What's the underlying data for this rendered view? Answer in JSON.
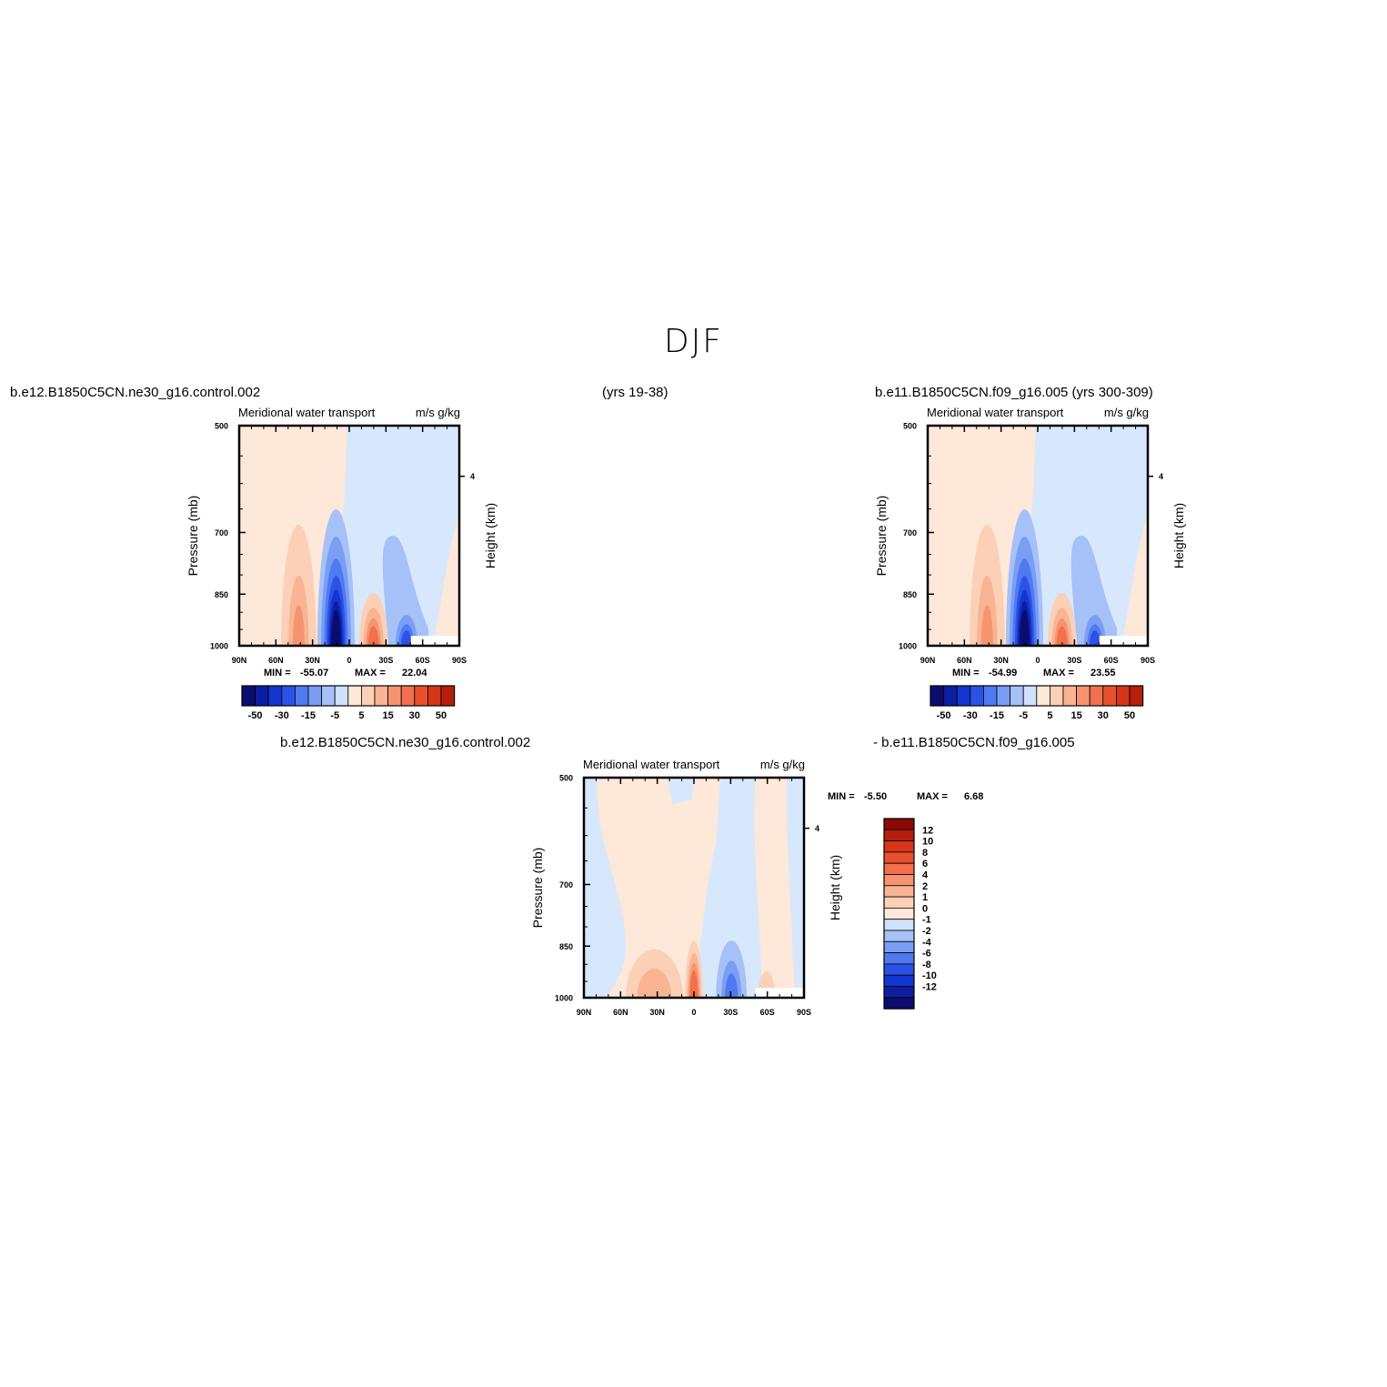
{
  "figure": {
    "title": "DJF",
    "panel_captions": {
      "p1_left": "b.e12.B1850C5CN.ne30_g16.control.002",
      "p1_right": "(yrs 19-38)",
      "p2_left": "b.e11.B1850C5CN.f09_g16.005 (yrs 300-309)",
      "p3_left": "b.e12.B1850C5CN.ne30_g16.control.002",
      "p3_right": "- b.e11.B1850C5CN.f09_g16.005"
    }
  },
  "colors": {
    "blues": [
      "#0b0d6e",
      "#0d1ea3",
      "#1436d0",
      "#2b52e6",
      "#4f7af0",
      "#7a9ef4",
      "#a6c0f8",
      "#cfe1fc"
    ],
    "reds": [
      "#fde8d9",
      "#fbd0b6",
      "#f9b493",
      "#f69470",
      "#f2704d",
      "#e8502d",
      "#d63518",
      "#b51f0c",
      "#8a0a05"
    ],
    "background_pos": "#fde8d9",
    "background_neg": "#d7e8fd"
  },
  "chart_data": [
    {
      "type": "contour",
      "panel": "top-left",
      "title_left": "Meridional water transport",
      "title_right": "m/s g/kg",
      "ylabel": "Pressure (mb)",
      "ylabel_right": "Height (km)",
      "yticks": [
        500,
        700,
        850,
        1000
      ],
      "ylim": [
        500,
        1000
      ],
      "right_ticks": [
        "4"
      ],
      "xticks": [
        "90N",
        "60N",
        "30N",
        "0",
        "30S",
        "60S",
        "90S"
      ],
      "min_label": "MIN =",
      "min_value": "-55.07",
      "max_label": "MAX =",
      "max_value": "22.04",
      "colorbar_labels": [
        "-50",
        "-30",
        "-15",
        "-5",
        "5",
        "15",
        "30",
        "50"
      ]
    },
    {
      "type": "contour",
      "panel": "top-right",
      "title_left": "Meridional water transport",
      "title_right": "m/s g/kg",
      "ylabel": "Pressure (mb)",
      "ylabel_right": "Height (km)",
      "yticks": [
        500,
        700,
        850,
        1000
      ],
      "ylim": [
        500,
        1000
      ],
      "right_ticks": [
        "4"
      ],
      "xticks": [
        "90N",
        "60N",
        "30N",
        "0",
        "30S",
        "60S",
        "90S"
      ],
      "min_label": "MIN =",
      "min_value": "-54.99",
      "max_label": "MAX =",
      "max_value": "23.55",
      "colorbar_labels": [
        "-50",
        "-30",
        "-15",
        "-5",
        "5",
        "15",
        "30",
        "50"
      ]
    },
    {
      "type": "contour",
      "panel": "bottom",
      "title_left": "Meridional water transport",
      "title_right": "m/s g/kg",
      "ylabel": "Pressure (mb)",
      "ylabel_right": "Height (km)",
      "yticks": [
        500,
        700,
        850,
        1000
      ],
      "ylim": [
        500,
        1000
      ],
      "right_ticks": [
        "4"
      ],
      "xticks": [
        "90N",
        "60N",
        "30N",
        "0",
        "30S",
        "60S",
        "90S"
      ],
      "min_label": "MIN =",
      "min_value": "-5.50",
      "max_label": "MAX =",
      "max_value": "6.68",
      "colorbar_labels": [
        "12",
        "10",
        "8",
        "6",
        "4",
        "2",
        "1",
        "0",
        "-1",
        "-2",
        "-4",
        "-6",
        "-8",
        "-10",
        "-12"
      ]
    }
  ]
}
